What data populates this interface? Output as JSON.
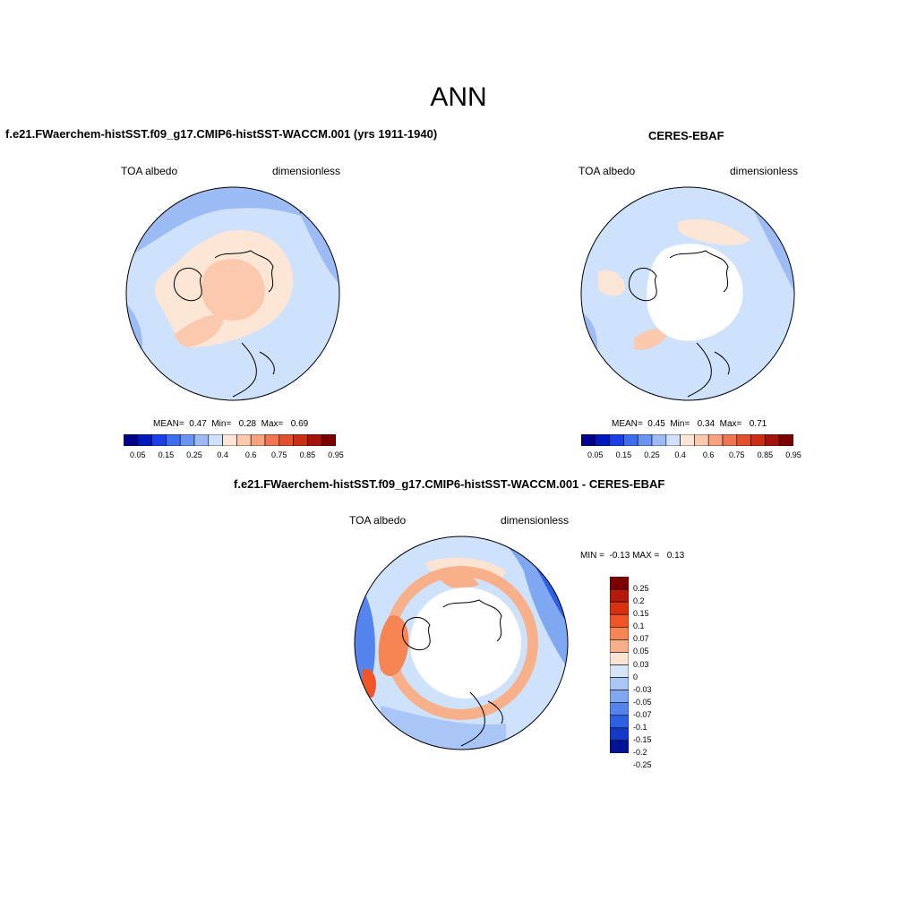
{
  "page": {
    "title": "ANN"
  },
  "panels": [
    {
      "title": "f.e21.FWaerchem-histSST.f09_g17.CMIP6-histSST-WACCM.001 (yrs 1911-1940)",
      "left_label": "TOA albedo",
      "right_label": "dimensionless",
      "stats": {
        "mean_label": "MEAN=",
        "mean": "0.47",
        "min_label": "Min=",
        "min": "0.28",
        "max_label": "Max=",
        "max": "0.69"
      }
    },
    {
      "title": "CERES-EBAF",
      "left_label": "TOA albedo",
      "right_label": "dimensionless",
      "stats": {
        "mean_label": "MEAN=",
        "mean": "0.45",
        "min_label": "Min=",
        "min": "0.34",
        "max_label": "Max=",
        "max": "0.71"
      }
    },
    {
      "title": "f.e21.FWaerchem-histSST.f09_g17.CMIP6-histSST-WACCM.001 - CERES-EBAF",
      "left_label": "TOA albedo",
      "right_label": "dimensionless",
      "stats": {
        "min_label": "MIN =",
        "min": "-0.13",
        "max_label": "MAX =",
        "max": "0.13"
      }
    }
  ],
  "colorbar_abs": {
    "colors": [
      "#00008b",
      "#0019bd",
      "#1a3fe6",
      "#3d6ef0",
      "#6a94f2",
      "#9dbcf6",
      "#cfe2fb",
      "#fde6d6",
      "#fbc9ad",
      "#f7a380",
      "#f07652",
      "#e4502c",
      "#c92e12",
      "#a5140a",
      "#7d0000"
    ],
    "tick_labels": [
      "0.05",
      "0.15",
      "0.25",
      "0.4",
      "0.6",
      "0.75",
      "0.85",
      "0.95"
    ]
  },
  "colorbar_diff": {
    "colors": [
      "#7d0000",
      "#b31a0a",
      "#d9300f",
      "#ef5527",
      "#f58552",
      "#f8b08a",
      "#fde3d1",
      "#d5e6f9",
      "#a9c6f6",
      "#7fa7f2",
      "#5584ee",
      "#2f5fe4",
      "#1638c9",
      "#001394"
    ],
    "tick_labels": [
      "0.25",
      "0.2",
      "0.15",
      "0.1",
      "0.07",
      "0.05",
      "0.03",
      "0",
      "-0.03",
      "-0.05",
      "-0.07",
      "-0.1",
      "-0.15",
      "-0.2",
      "-0.25"
    ]
  }
}
